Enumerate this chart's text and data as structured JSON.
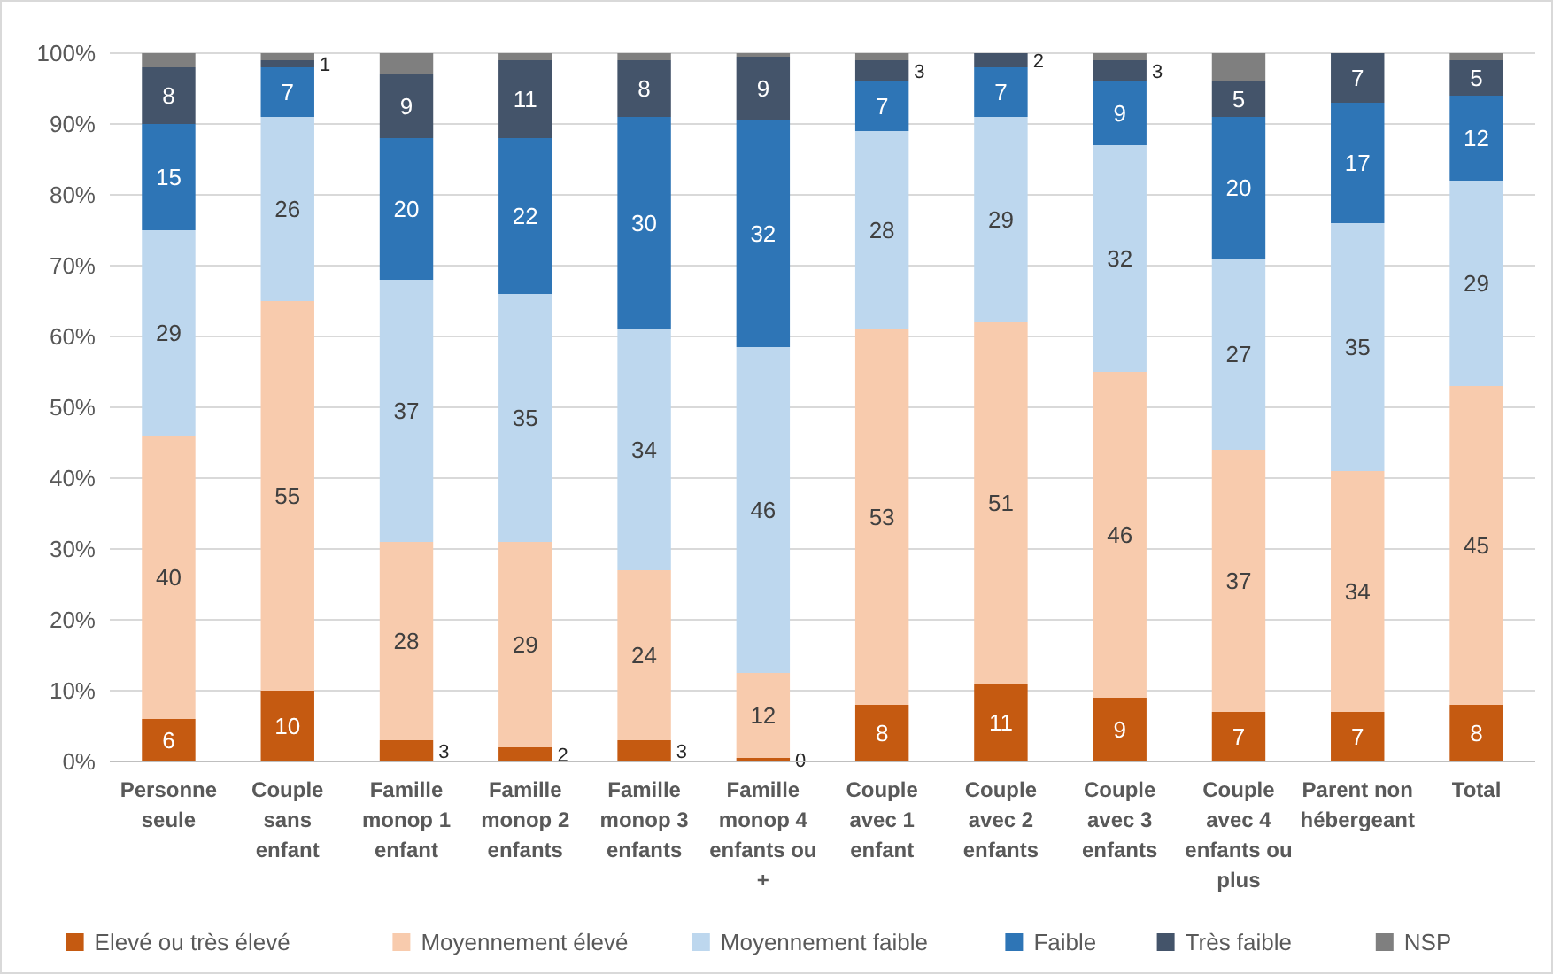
{
  "chart_data": {
    "type": "bar",
    "stacked": true,
    "categories": [
      "Personne seule",
      "Couple sans enfant",
      "Famille monop 1 enfant",
      "Famille monop 2 enfants",
      "Famille monop 3 enfants",
      "Famille monop 4 enfants ou +",
      "Couple avec 1 enfant",
      "Couple avec 2 enfants",
      "Couple avec 3 enfants",
      "Couple avec 4 enfants ou plus",
      "Parent non hébergeant",
      "Total"
    ],
    "series": [
      {
        "name": "Elevé ou très élevé",
        "color": "#c55a11",
        "values": [
          6,
          10,
          3,
          2,
          3,
          0.5,
          8,
          11,
          9,
          7,
          7,
          8
        ],
        "value_labels": [
          "6",
          "10",
          "3",
          "2",
          "3",
          "0",
          "8",
          "11",
          "9",
          "7",
          "7",
          "8"
        ]
      },
      {
        "name": "Moyennement élevé",
        "color": "#f8cbad",
        "values": [
          40,
          55,
          28,
          29,
          24,
          12,
          53,
          51,
          46,
          37,
          34,
          45
        ],
        "value_labels": [
          "40",
          "55",
          "28",
          "29",
          "24",
          "12",
          "53",
          "51",
          "46",
          "37",
          "34",
          "45"
        ]
      },
      {
        "name": "Moyennement faible",
        "color": "#bdd7ee",
        "values": [
          29,
          26,
          37,
          35,
          34,
          46,
          28,
          29,
          32,
          27,
          35,
          29
        ],
        "value_labels": [
          "29",
          "26",
          "37",
          "35",
          "34",
          "46",
          "28",
          "29",
          "32",
          "27",
          "35",
          "29"
        ]
      },
      {
        "name": "Faible",
        "color": "#2e75b6",
        "values": [
          15,
          7,
          20,
          22,
          30,
          32,
          7,
          7,
          9,
          20,
          17,
          12
        ],
        "value_labels": [
          "15",
          "7",
          "20",
          "22",
          "30",
          "32",
          "7",
          "7",
          "9",
          "20",
          "17",
          "12"
        ]
      },
      {
        "name": "Très faible",
        "color": "#44546a",
        "values": [
          8,
          1,
          9,
          11,
          8,
          9,
          3,
          2,
          3,
          5,
          7,
          5
        ],
        "value_labels": [
          "8",
          "1",
          "9",
          "11",
          "8",
          "9",
          "3",
          "2",
          "3",
          "5",
          "7",
          "5"
        ]
      },
      {
        "name": "NSP",
        "color": "#7f7f7f",
        "values": [
          2,
          1,
          3,
          1,
          1,
          0.5,
          1,
          0,
          1,
          4,
          0,
          1
        ]
      }
    ],
    "ylim": [
      0,
      100
    ],
    "yticks": [
      {
        "value": 0,
        "label": "0%"
      },
      {
        "value": 10,
        "label": "10%"
      },
      {
        "value": 20,
        "label": "20%"
      },
      {
        "value": 30,
        "label": "30%"
      },
      {
        "value": 40,
        "label": "40%"
      },
      {
        "value": 50,
        "label": "50%"
      },
      {
        "value": 60,
        "label": "60%"
      },
      {
        "value": 70,
        "label": "70%"
      },
      {
        "value": 80,
        "label": "80%"
      },
      {
        "value": 90,
        "label": "90%"
      },
      {
        "value": 100,
        "label": "100%"
      }
    ],
    "grid": "y",
    "legend": "bottom"
  }
}
